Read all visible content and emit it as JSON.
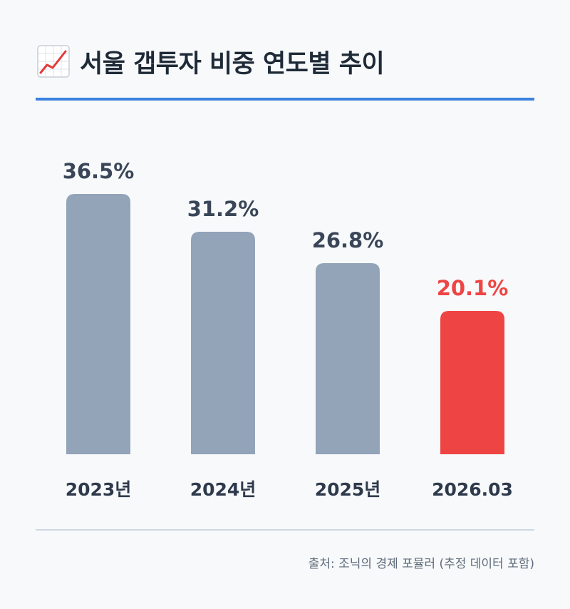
{
  "title": "서울 갭투자 비중 연도별 추이",
  "title_icon": "chart-increasing-icon",
  "source": "출처: 조닉의 경제 포뮬러 (추정 데이터 포함)",
  "colors": {
    "bar_default": "#93a3b8",
    "bar_highlight": "#ef4444",
    "value_default": "#3a4658",
    "value_highlight": "#ef4444",
    "title_rule": "#3b82e0"
  },
  "chart_data": {
    "type": "bar",
    "categories": [
      "2023년",
      "2024년",
      "2025년",
      "2026.03"
    ],
    "values": [
      36.5,
      31.2,
      26.8,
      20.1
    ],
    "value_labels": [
      "36.5%",
      "31.2%",
      "26.8%",
      "20.1%"
    ],
    "highlight_index": 3,
    "unit": "%",
    "title": "서울 갭투자 비중 연도별 추이",
    "xlabel": "",
    "ylabel": "",
    "grid": false,
    "legend": "none"
  }
}
